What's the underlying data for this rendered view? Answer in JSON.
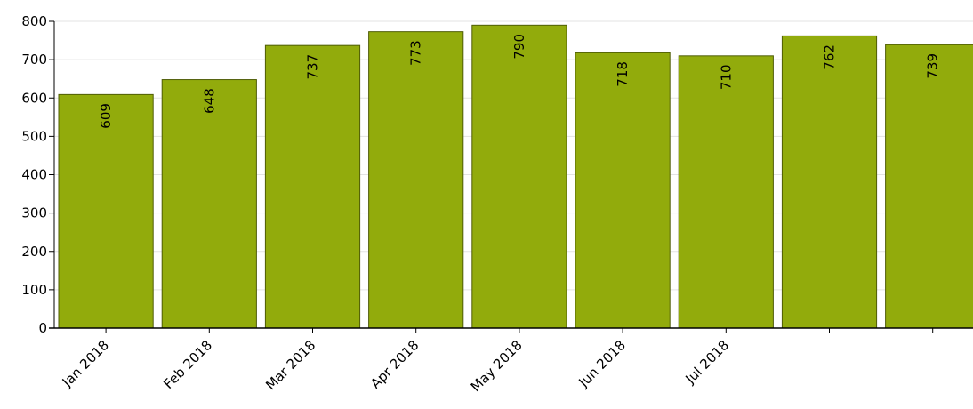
{
  "chart_data": {
    "type": "bar",
    "categories": [
      "Jan 2018",
      "Feb 2018",
      "Mar 2018",
      "Apr 2018",
      "May 2018",
      "Jun 2018",
      "Jul 2018",
      "",
      ""
    ],
    "values": [
      609,
      648,
      737,
      773,
      790,
      718,
      710,
      762,
      739
    ],
    "title": "",
    "xlabel": "",
    "ylabel": "",
    "ylim": [
      0,
      800
    ],
    "yticks": [
      0,
      100,
      200,
      300,
      400,
      500,
      600,
      700,
      800
    ],
    "grid": true,
    "legend": "none",
    "data_labels": "inside-top-rotated",
    "colors": {
      "bar_fill": "#92ab0c",
      "bar_stroke": "#4f5d06",
      "grid": "#e3e3e3",
      "axis": "#000000"
    }
  }
}
